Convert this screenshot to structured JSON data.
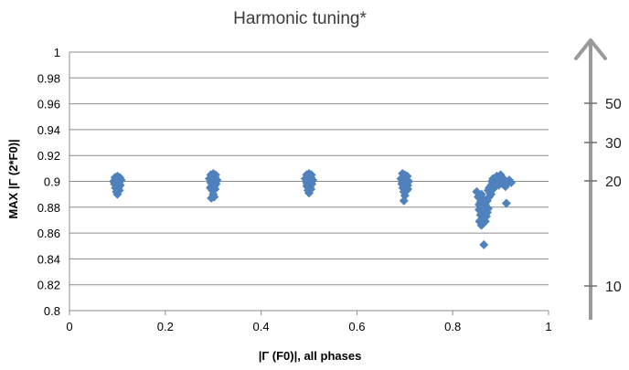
{
  "chart_data": {
    "type": "scatter",
    "title": "Harmonic tuning*",
    "xlabel": "|Γ (F0)|, all phases",
    "ylabel": "MAX |Γ (2*F0)|",
    "xlim": [
      0,
      1
    ],
    "ylim": [
      0.8,
      1
    ],
    "grid": "horizontal",
    "x_ticks": [
      "0",
      "0.2",
      "0.4",
      "0.6",
      "0.8",
      "1"
    ],
    "y_ticks": [
      "0.8",
      "0.82",
      "0.84",
      "0.86",
      "0.88",
      "0.9",
      "0.92",
      "0.94",
      "0.96",
      "0.98",
      "1"
    ],
    "marker_color": "#4f81bd",
    "series": [
      {
        "points": [
          [
            0.095,
            0.903
          ],
          [
            0.1,
            0.904
          ],
          [
            0.105,
            0.903
          ],
          [
            0.092,
            0.9
          ],
          [
            0.098,
            0.901
          ],
          [
            0.104,
            0.9
          ],
          [
            0.108,
            0.901
          ],
          [
            0.094,
            0.898
          ],
          [
            0.1,
            0.898
          ],
          [
            0.106,
            0.897
          ],
          [
            0.096,
            0.895
          ],
          [
            0.102,
            0.895
          ],
          [
            0.098,
            0.892
          ],
          [
            0.104,
            0.893
          ],
          [
            0.1,
            0.89
          ],
          [
            0.097,
            0.899
          ],
          [
            0.103,
            0.899
          ],
          [
            0.295,
            0.905
          ],
          [
            0.3,
            0.906
          ],
          [
            0.305,
            0.905
          ],
          [
            0.292,
            0.902
          ],
          [
            0.298,
            0.902
          ],
          [
            0.304,
            0.903
          ],
          [
            0.308,
            0.901
          ],
          [
            0.295,
            0.899
          ],
          [
            0.3,
            0.899
          ],
          [
            0.306,
            0.898
          ],
          [
            0.296,
            0.896
          ],
          [
            0.302,
            0.896
          ],
          [
            0.298,
            0.893
          ],
          [
            0.304,
            0.894
          ],
          [
            0.3,
            0.89
          ],
          [
            0.296,
            0.887
          ],
          [
            0.302,
            0.888
          ],
          [
            0.294,
            0.895
          ],
          [
            0.306,
            0.9
          ],
          [
            0.495,
            0.905
          ],
          [
            0.5,
            0.906
          ],
          [
            0.505,
            0.905
          ],
          [
            0.492,
            0.902
          ],
          [
            0.498,
            0.902
          ],
          [
            0.504,
            0.903
          ],
          [
            0.508,
            0.901
          ],
          [
            0.495,
            0.899
          ],
          [
            0.5,
            0.899
          ],
          [
            0.506,
            0.898
          ],
          [
            0.496,
            0.896
          ],
          [
            0.502,
            0.896
          ],
          [
            0.498,
            0.893
          ],
          [
            0.504,
            0.894
          ],
          [
            0.5,
            0.891
          ],
          [
            0.496,
            0.897
          ],
          [
            0.503,
            0.9
          ],
          [
            0.695,
            0.906
          ],
          [
            0.7,
            0.905
          ],
          [
            0.705,
            0.904
          ],
          [
            0.692,
            0.902
          ],
          [
            0.698,
            0.903
          ],
          [
            0.704,
            0.901
          ],
          [
            0.708,
            0.9
          ],
          [
            0.695,
            0.899
          ],
          [
            0.7,
            0.898
          ],
          [
            0.706,
            0.897
          ],
          [
            0.696,
            0.895
          ],
          [
            0.702,
            0.895
          ],
          [
            0.698,
            0.892
          ],
          [
            0.704,
            0.893
          ],
          [
            0.7,
            0.889
          ],
          [
            0.698,
            0.885
          ],
          [
            0.694,
            0.898
          ],
          [
            0.706,
            0.894
          ],
          [
            0.85,
            0.892
          ],
          [
            0.853,
            0.888
          ],
          [
            0.855,
            0.882
          ],
          [
            0.855,
            0.878
          ],
          [
            0.858,
            0.874
          ],
          [
            0.856,
            0.869
          ],
          [
            0.858,
            0.87
          ],
          [
            0.86,
            0.866
          ],
          [
            0.862,
            0.872
          ],
          [
            0.864,
            0.878
          ],
          [
            0.866,
            0.884
          ],
          [
            0.862,
            0.887
          ],
          [
            0.86,
            0.89
          ],
          [
            0.865,
            0.851
          ],
          [
            0.868,
            0.869
          ],
          [
            0.87,
            0.873
          ],
          [
            0.872,
            0.876
          ],
          [
            0.874,
            0.879
          ],
          [
            0.868,
            0.882
          ],
          [
            0.872,
            0.885
          ],
          [
            0.876,
            0.888
          ],
          [
            0.878,
            0.891
          ],
          [
            0.874,
            0.893
          ],
          [
            0.876,
            0.895
          ],
          [
            0.88,
            0.897
          ],
          [
            0.882,
            0.9
          ],
          [
            0.884,
            0.902
          ],
          [
            0.886,
            0.899
          ],
          [
            0.888,
            0.896
          ],
          [
            0.89,
            0.901
          ],
          [
            0.892,
            0.904
          ],
          [
            0.894,
            0.9
          ],
          [
            0.896,
            0.897
          ],
          [
            0.898,
            0.903
          ],
          [
            0.9,
            0.905
          ],
          [
            0.902,
            0.901
          ],
          [
            0.904,
            0.898
          ],
          [
            0.906,
            0.902
          ],
          [
            0.908,
            0.9
          ],
          [
            0.91,
            0.896
          ],
          [
            0.912,
            0.883
          ],
          [
            0.915,
            0.899
          ],
          [
            0.918,
            0.901
          ],
          [
            0.922,
            0.899
          ],
          [
            0.88,
            0.89
          ],
          [
            0.884,
            0.894
          ],
          [
            0.866,
            0.876
          ],
          [
            0.87,
            0.88
          ],
          [
            0.858,
            0.884
          ]
        ]
      }
    ]
  },
  "side_scale": {
    "labels": [
      "50",
      "30",
      "20",
      "10"
    ]
  }
}
